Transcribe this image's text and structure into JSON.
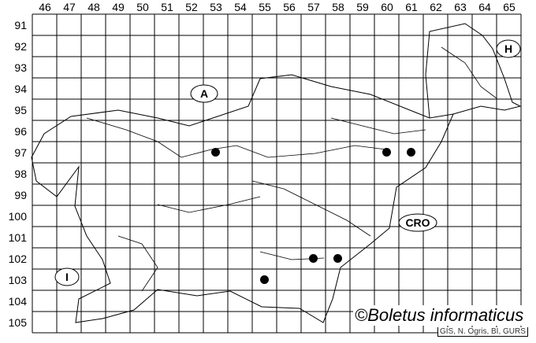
{
  "map": {
    "columns": [
      "46",
      "47",
      "48",
      "49",
      "50",
      "51",
      "52",
      "53",
      "54",
      "55",
      "56",
      "57",
      "58",
      "59",
      "60",
      "61",
      "62",
      "63",
      "64",
      "65"
    ],
    "rows": [
      "91",
      "92",
      "93",
      "94",
      "95",
      "96",
      "97",
      "98",
      "99",
      "100",
      "101",
      "102",
      "103",
      "104",
      "105"
    ],
    "country_labels": {
      "austria": "A",
      "hungary": "H",
      "croatia": "CRO",
      "italy": "I"
    },
    "records": [
      {
        "col": "53",
        "row": "97"
      },
      {
        "col": "60",
        "row": "97"
      },
      {
        "col": "61",
        "row": "97"
      },
      {
        "col": "57",
        "row": "102"
      },
      {
        "col": "58",
        "row": "102"
      },
      {
        "col": "55",
        "row": "103"
      }
    ],
    "marker_color": "#000000"
  },
  "copyright": "©Boletus informaticus",
  "source": "GIS, N. Ogris, BI, GURS"
}
